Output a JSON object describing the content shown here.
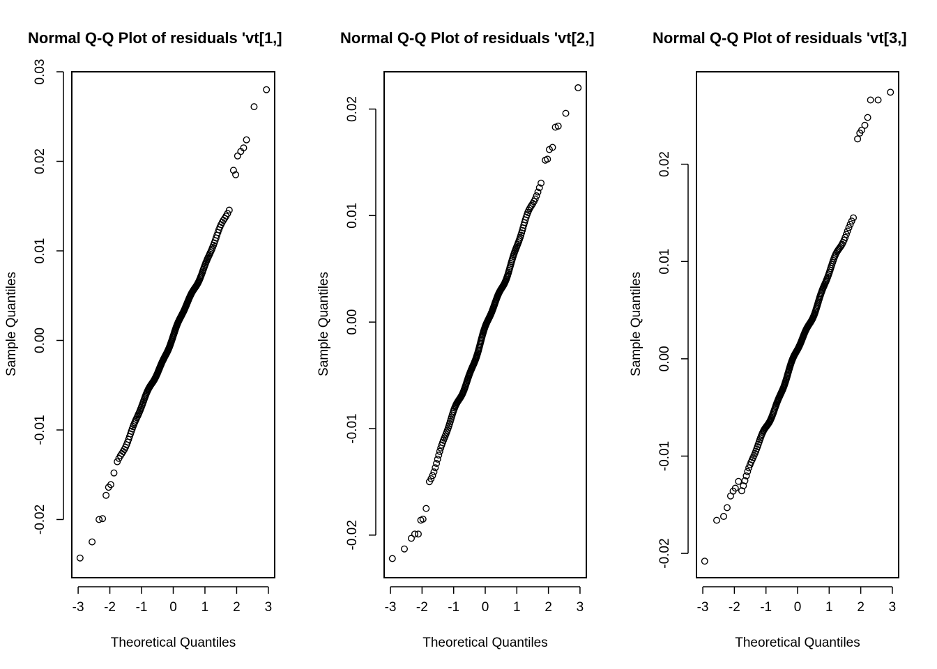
{
  "chart_data": [
    {
      "type": "scatter",
      "title": "Normal Q-Q Plot of residuals 'vt[1,]",
      "xlabel": "Theoretical Quantiles",
      "ylabel": "Sample Quantiles",
      "xlim": [
        -3.2,
        3.2
      ],
      "ylim": [
        -0.0265,
        0.03
      ],
      "xticks": [
        -3,
        -2,
        -1,
        0,
        1,
        2,
        3
      ],
      "xtick_labels": [
        "-3",
        "-2",
        "-1",
        "0",
        "1",
        "2",
        "3"
      ],
      "yticks": [
        -0.02,
        -0.01,
        0.0,
        0.01,
        0.02,
        0.03
      ],
      "ytick_labels": [
        "-0.02",
        "-0.01",
        "0.00",
        "0.01",
        "0.02",
        "0.03"
      ],
      "n_points": 220,
      "x": [
        -2.94,
        -2.56,
        -2.34,
        -2.23,
        -2.12,
        -2.04,
        -1.97,
        -1.87
      ],
      "y": [
        -0.0243,
        -0.0225,
        -0.02,
        -0.0199,
        -0.0173,
        -0.0164,
        -0.0161,
        -0.0148
      ],
      "x_upper": [
        1.9,
        1.97,
        2.03,
        2.13,
        2.22,
        2.31,
        2.55,
        2.94
      ],
      "y_upper": [
        0.019,
        0.0185,
        0.0206,
        0.0211,
        0.0215,
        0.0224,
        0.0261,
        0.028
      ]
    },
    {
      "type": "scatter",
      "title": "Normal Q-Q Plot of residuals 'vt[2,]",
      "xlabel": "Theoretical Quantiles",
      "ylabel": "Sample Quantiles",
      "xlim": [
        -3.2,
        3.2
      ],
      "ylim": [
        -0.024,
        0.0235
      ],
      "xticks": [
        -3,
        -2,
        -1,
        0,
        1,
        2,
        3
      ],
      "xtick_labels": [
        "-3",
        "-2",
        "-1",
        "0",
        "1",
        "2",
        "3"
      ],
      "yticks": [
        -0.02,
        -0.01,
        0.0,
        0.01,
        0.02
      ],
      "ytick_labels": [
        "-0.02",
        "-0.01",
        "0.00",
        "0.01",
        "0.02"
      ],
      "n_points": 220,
      "x": [
        -2.94,
        -2.56,
        -2.34,
        -2.23,
        -2.12,
        -2.04,
        -1.97,
        -1.87
      ],
      "y": [
        -0.0222,
        -0.0213,
        -0.0203,
        -0.0199,
        -0.0199,
        -0.0186,
        -0.0185,
        -0.0175
      ],
      "x_upper": [
        1.9,
        1.97,
        2.03,
        2.13,
        2.22,
        2.31,
        2.55,
        2.94
      ],
      "y_upper": [
        0.0152,
        0.0153,
        0.0162,
        0.0164,
        0.0183,
        0.0184,
        0.0196,
        0.022
      ]
    },
    {
      "type": "scatter",
      "title": "Normal Q-Q Plot of residuals 'vt[3,]",
      "xlabel": "Theoretical Quantiles",
      "ylabel": "Sample Quantiles",
      "xlim": [
        -3.2,
        3.2
      ],
      "ylim": [
        -0.0225,
        0.0295
      ],
      "xticks": [
        -3,
        -2,
        -1,
        0,
        1,
        2,
        3
      ],
      "xtick_labels": [
        "-3",
        "-2",
        "-1",
        "0",
        "1",
        "2",
        "3"
      ],
      "yticks": [
        -0.02,
        -0.01,
        0.0,
        0.01,
        0.02
      ],
      "ytick_labels": [
        "-0.02",
        "-0.01",
        "0.00",
        "0.01",
        "0.02"
      ],
      "n_points": 220,
      "x": [
        -2.94,
        -2.56,
        -2.34,
        -2.23,
        -2.12,
        -2.04,
        -1.97,
        -1.87
      ],
      "y": [
        -0.0208,
        -0.0166,
        -0.0162,
        -0.0153,
        -0.0141,
        -0.0136,
        -0.0133,
        -0.0126
      ],
      "x_upper": [
        1.9,
        1.97,
        2.03,
        2.13,
        2.22,
        2.31,
        2.55,
        2.94
      ],
      "y_upper": [
        0.0226,
        0.0232,
        0.0235,
        0.024,
        0.0248,
        0.0266,
        0.0266,
        0.0274
      ]
    }
  ]
}
